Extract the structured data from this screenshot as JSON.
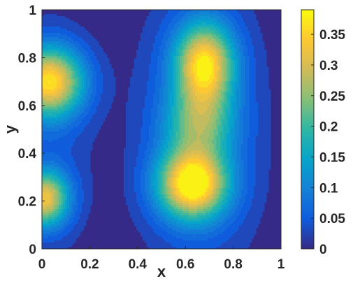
{
  "chart_data": {
    "type": "heatmap",
    "style": "filled-contour",
    "colormap": "parula",
    "xlabel": "x",
    "ylabel": "y",
    "xlim": [
      0,
      1
    ],
    "ylim": [
      0,
      1
    ],
    "x_ticks": [
      "0",
      "0.2",
      "0.4",
      "0.6",
      "0.8",
      "1"
    ],
    "y_ticks": [
      "0",
      "0.2",
      "0.4",
      "0.6",
      "0.8",
      "1"
    ],
    "colorbar": {
      "range": [
        0,
        0.39
      ],
      "ticks": [
        "0",
        "0.05",
        "0.1",
        "0.15",
        "0.2",
        "0.25",
        "0.3",
        "0.35"
      ]
    },
    "peaks": [
      {
        "x": 0.03,
        "y": 0.7,
        "value": 0.34
      },
      {
        "x": 0.68,
        "y": 0.77,
        "value": 0.33
      },
      {
        "x": 0.63,
        "y": 0.27,
        "value": 0.37
      },
      {
        "x": 0.01,
        "y": 0.21,
        "value": 0.3
      }
    ],
    "grid": false
  }
}
